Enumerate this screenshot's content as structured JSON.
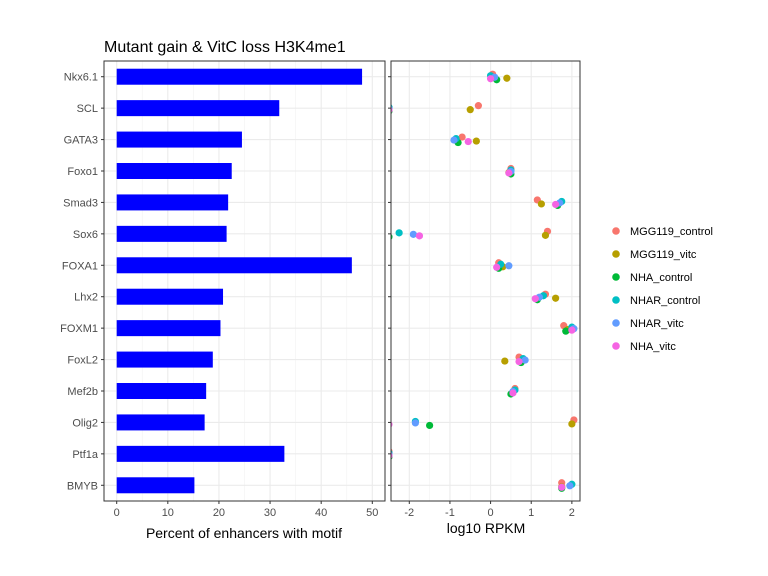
{
  "chart_data": [
    {
      "type": "bar",
      "orientation": "horizontal",
      "title": "Mutant gain & VitC loss H3K4me1",
      "xlabel": "Percent of enhancers with motif",
      "categories": [
        "Nkx6.1",
        "SCL",
        "GATA3",
        "Foxo1",
        "Smad3",
        "Sox6",
        "FOXA1",
        "Lhx2",
        "FOXM1",
        "FoxL2",
        "Mef2b",
        "Olig2",
        "Ptf1a",
        "BMYB"
      ],
      "values": [
        48,
        31.8,
        24.5,
        22.5,
        21.8,
        21.5,
        46,
        20.8,
        20.3,
        18.8,
        17.5,
        17.2,
        32.8,
        15.2
      ],
      "xlim": [
        0,
        50
      ],
      "xticks": [
        0,
        10,
        20,
        30,
        40,
        50
      ],
      "bar_color": "#0000FF",
      "grid": true
    },
    {
      "type": "scatter",
      "xlabel": "log10 RPKM",
      "xlim": [
        -2.45,
        2.2
      ],
      "xticks": [
        -2,
        -1,
        0,
        1,
        2
      ],
      "grid": true,
      "series": [
        {
          "name": "MGG119_control",
          "color": "#F8766D",
          "values": [
            0.05,
            -0.3,
            -0.7,
            0.5,
            1.15,
            1.4,
            0.2,
            1.35,
            1.8,
            0.7,
            0.6,
            2.05,
            -2.5,
            1.75
          ]
        },
        {
          "name": "MGG119_vitc",
          "color": "#B79F00",
          "values": [
            0.4,
            -0.5,
            -0.35,
            0.45,
            1.25,
            1.35,
            0.3,
            1.6,
            1.9,
            0.35,
            0.55,
            2.0,
            -2.5,
            1.75
          ]
        },
        {
          "name": "NHA_control",
          "color": "#00BA38",
          "values": [
            0.15,
            -2.5,
            -0.8,
            0.5,
            1.65,
            -2.5,
            0.2,
            1.15,
            1.85,
            0.75,
            0.5,
            -1.5,
            -2.5,
            1.75
          ]
        },
        {
          "name": "NHAR_control",
          "color": "#00BFC4",
          "values": [
            0.0,
            -2.5,
            -0.85,
            0.5,
            1.75,
            -2.25,
            0.25,
            1.3,
            2.0,
            0.8,
            0.6,
            -1.85,
            -2.5,
            2.0
          ]
        },
        {
          "name": "NHAR_vitc",
          "color": "#619CFF",
          "values": [
            0.1,
            -2.5,
            -0.9,
            0.5,
            1.7,
            -1.9,
            0.45,
            1.2,
            2.05,
            0.85,
            0.55,
            -1.85,
            -2.5,
            1.95
          ]
        },
        {
          "name": "NHA_vitc",
          "color": "#F564E3",
          "values": [
            0.0,
            -2.5,
            -0.55,
            0.45,
            1.6,
            -1.75,
            0.15,
            1.1,
            2.0,
            0.7,
            0.55,
            -2.5,
            -2.5,
            1.75
          ]
        }
      ]
    }
  ]
}
